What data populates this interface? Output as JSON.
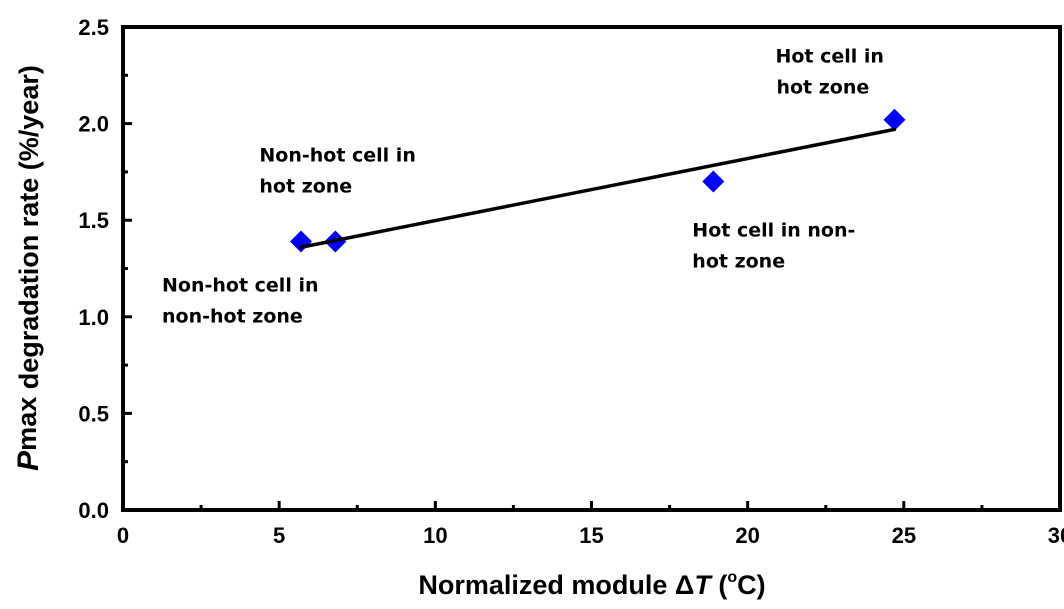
{
  "chart_data": {
    "type": "scatter",
    "title": "",
    "xlabel": "Normalized module ΔT (°C)",
    "xlabel_parts": {
      "prefix": "Normalized module Δ",
      "var": "T",
      "open": " (",
      "sup": "o",
      "unit": "C)"
    },
    "ylabel": "Pmax degradation rate (%/year)",
    "ylabel_parts": {
      "var": "P",
      "sub": "max",
      "rest": " degradation rate (%/year)"
    },
    "xlim": [
      0,
      30
    ],
    "ylim": [
      0,
      2.5
    ],
    "x_ticks": [
      0,
      5,
      10,
      15,
      20,
      25,
      30
    ],
    "x_tick_labels": [
      "0",
      "5",
      "10",
      "15",
      "20",
      "25",
      "30"
    ],
    "y_ticks": [
      0,
      0.5,
      1.0,
      1.5,
      2.0,
      2.5
    ],
    "y_tick_labels": [
      "0.0",
      "0.5",
      "1.0",
      "1.5",
      "2.0",
      "2.5"
    ],
    "grid": false,
    "series": [
      {
        "name": "Measured",
        "marker": "diamond",
        "color": "#0000ff",
        "points": [
          {
            "x": 5.7,
            "y": 1.39,
            "label": "Non-hot cell in non-hot zone"
          },
          {
            "x": 6.8,
            "y": 1.39,
            "label": "Non-hot cell in hot zone"
          },
          {
            "x": 18.9,
            "y": 1.7,
            "label": "Hot cell in non-hot zone"
          },
          {
            "x": 24.7,
            "y": 2.02,
            "label": "Hot cell in hot zone"
          }
        ]
      },
      {
        "name": "Linear fit",
        "type": "line",
        "color": "#000000",
        "x": [
          5.7,
          24.7
        ],
        "y": [
          1.36,
          1.97
        ]
      }
    ],
    "annotations": [
      {
        "lines": [
          "Non-hot cell in",
          "hot zone"
        ],
        "x": 6.8,
        "y": 1.39
      },
      {
        "lines": [
          "Non-hot cell in",
          "non-hot zone"
        ],
        "x": 5.7,
        "y": 1.39
      },
      {
        "lines": [
          "Hot cell in non-",
          "hot zone"
        ],
        "x": 18.9,
        "y": 1.7
      },
      {
        "lines": [
          "Hot cell in",
          "hot zone"
        ],
        "x": 24.7,
        "y": 2.02
      }
    ]
  }
}
